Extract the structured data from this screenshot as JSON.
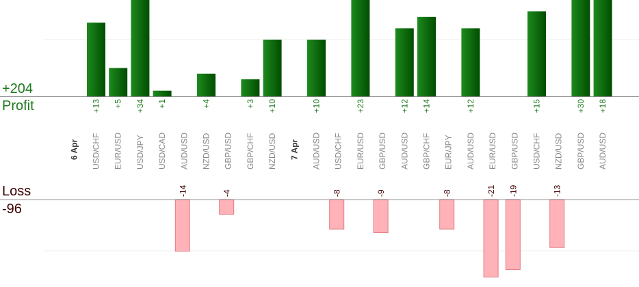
{
  "summary": {
    "profit_total": "+204",
    "profit_label": "Profit",
    "loss_label": "Loss",
    "loss_total": "-96"
  },
  "colors": {
    "profit_text": "#1e7a1e",
    "profit_bar_light": "#1d8a1d",
    "profit_bar_dark": "#004d00",
    "loss_text": "#3d0000",
    "loss_bar_fill": "#ffb3b8",
    "loss_bar_stroke": "#e07a82",
    "axis": "#888888",
    "grid": "#eeeeee",
    "pair_label": "#888888",
    "date_label": "#333333"
  },
  "chart_data": {
    "type": "bar",
    "series": [
      {
        "name": "Profit",
        "values": [
          13,
          5,
          34,
          1,
          null,
          4,
          null,
          3,
          10,
          null,
          10,
          null,
          23,
          null,
          12,
          14,
          null,
          12,
          null,
          null,
          15,
          null,
          30,
          18
        ]
      },
      {
        "name": "Loss",
        "values": [
          null,
          null,
          null,
          null,
          -14,
          null,
          -4,
          null,
          null,
          null,
          null,
          -8,
          null,
          -9,
          null,
          null,
          -8,
          null,
          -21,
          -19,
          null,
          -13,
          null,
          null
        ]
      }
    ],
    "rows": [
      {
        "label": "USD/CHF",
        "profit": 13,
        "profit_label": "+13",
        "loss": null,
        "loss_label": null,
        "date": "6 Apr"
      },
      {
        "label": "EUR/USD",
        "profit": 5,
        "profit_label": "+5",
        "loss": null,
        "loss_label": null,
        "date": null
      },
      {
        "label": "USD/JPY",
        "profit": 34,
        "profit_label": "+34",
        "loss": null,
        "loss_label": null,
        "date": null
      },
      {
        "label": "USD/CAD",
        "profit": 1,
        "profit_label": "+1",
        "loss": null,
        "loss_label": null,
        "date": null
      },
      {
        "label": "AUD/USD",
        "profit": null,
        "profit_label": null,
        "loss": -14,
        "loss_label": "-14",
        "date": null
      },
      {
        "label": "NZD/USD",
        "profit": 4,
        "profit_label": "+4",
        "loss": null,
        "loss_label": null,
        "date": null
      },
      {
        "label": "GBP/USD",
        "profit": null,
        "profit_label": null,
        "loss": -4,
        "loss_label": "-4",
        "date": null
      },
      {
        "label": "GBP/CHF",
        "profit": 3,
        "profit_label": "+3",
        "loss": null,
        "loss_label": null,
        "date": null
      },
      {
        "label": "NZD/USD",
        "profit": 10,
        "profit_label": "+10",
        "loss": null,
        "loss_label": null,
        "date": null
      },
      {
        "label": "AUD/USD",
        "profit": 10,
        "profit_label": "+10",
        "loss": null,
        "loss_label": null,
        "date": "7 Apr"
      },
      {
        "label": "USD/CHF",
        "profit": null,
        "profit_label": null,
        "loss": -8,
        "loss_label": "-8",
        "date": null
      },
      {
        "label": "EUR/USD",
        "profit": 23,
        "profit_label": "+23",
        "loss": null,
        "loss_label": null,
        "date": null
      },
      {
        "label": "GBP/USD",
        "profit": null,
        "profit_label": null,
        "loss": -9,
        "loss_label": "-9",
        "date": null
      },
      {
        "label": "AUD/USD",
        "profit": 12,
        "profit_label": "+12",
        "loss": null,
        "loss_label": null,
        "date": null
      },
      {
        "label": "GBP/CHF",
        "profit": 14,
        "profit_label": "+14",
        "loss": null,
        "loss_label": null,
        "date": null
      },
      {
        "label": "EUR/JPY",
        "profit": null,
        "profit_label": null,
        "loss": -8,
        "loss_label": "-8",
        "date": null
      },
      {
        "label": "AUD/USD",
        "profit": 12,
        "profit_label": "+12",
        "loss": null,
        "loss_label": null,
        "date": null
      },
      {
        "label": "EUR/USD",
        "profit": null,
        "profit_label": null,
        "loss": -21,
        "loss_label": "-21",
        "date": null
      },
      {
        "label": "GBP/USD",
        "profit": null,
        "profit_label": null,
        "loss": -19,
        "loss_label": "-19",
        "date": null
      },
      {
        "label": "USD/CHF",
        "profit": 15,
        "profit_label": "+15",
        "loss": null,
        "loss_label": null,
        "date": null
      },
      {
        "label": "NZD/USD",
        "profit": null,
        "profit_label": null,
        "loss": -13,
        "loss_label": "-13",
        "date": null
      },
      {
        "label": "GBP/USD",
        "profit": 30,
        "profit_label": "+30",
        "loss": null,
        "loss_label": null,
        "date": null
      },
      {
        "label": "AUD/USD",
        "profit": 18,
        "profit_label": "+18",
        "loss": null,
        "loss_label": null,
        "date": null
      }
    ],
    "profit_ylim": [
      0,
      17
    ],
    "loss_ylim": [
      -20,
      0
    ],
    "grid": true,
    "bars_clipped_at_axis_limit": true
  }
}
